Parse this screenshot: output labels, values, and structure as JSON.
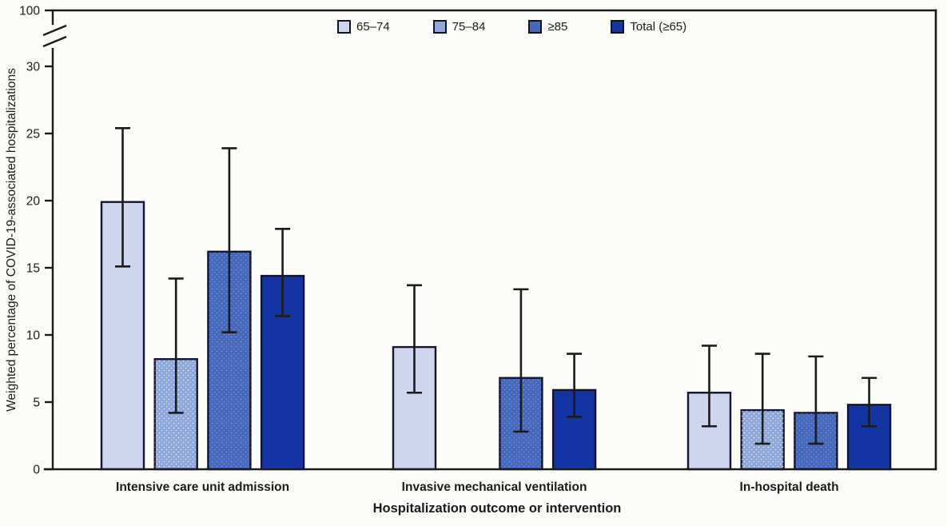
{
  "chart_data": {
    "type": "bar",
    "title": "",
    "xlabel": "Hospitalization outcome or intervention",
    "ylabel": "Weighted percentage of COVID-19-associated hospitalizations",
    "categories": [
      "Intensive care unit admission",
      "Invasive mechanical ventilation",
      "In-hospital death"
    ],
    "series": [
      {
        "name": "65–74",
        "color": "#cdd6ed",
        "texture": "none",
        "values": [
          19.9,
          9.1,
          5.7
        ],
        "ci_low": [
          15.1,
          5.7,
          3.2
        ],
        "ci_high": [
          25.4,
          13.7,
          9.2
        ]
      },
      {
        "name": "75–84",
        "color": "#90a7d9",
        "texture": "light-dots",
        "values": [
          8.2,
          null,
          4.4
        ],
        "ci_low": [
          4.2,
          null,
          1.9
        ],
        "ci_high": [
          14.2,
          null,
          8.6
        ]
      },
      {
        "name": "≥85",
        "color": "#4568bc",
        "texture": "subtle-dots",
        "values": [
          16.2,
          6.8,
          4.2
        ],
        "ci_low": [
          10.2,
          2.8,
          1.9
        ],
        "ci_high": [
          23.9,
          13.4,
          8.4
        ]
      },
      {
        "name": "Total (≥65)",
        "color": "#1434a4",
        "texture": "none",
        "values": [
          14.4,
          5.9,
          4.8
        ],
        "ci_low": [
          11.4,
          3.9,
          3.2
        ],
        "ci_high": [
          17.9,
          8.6,
          6.8
        ]
      }
    ],
    "error_bars": true,
    "grid": false,
    "legend_position": "top",
    "y_axis": {
      "ticks": [
        0,
        5,
        10,
        15,
        20,
        25,
        30
      ],
      "break_top_label": "100",
      "broken_axis": true,
      "ylim_display": [
        0,
        30
      ]
    },
    "colors": {
      "axis": "#1b1b1b",
      "bar_outline": "#14142e",
      "error_bar": "#1b1b1b",
      "background": "#fcfdf9"
    }
  }
}
